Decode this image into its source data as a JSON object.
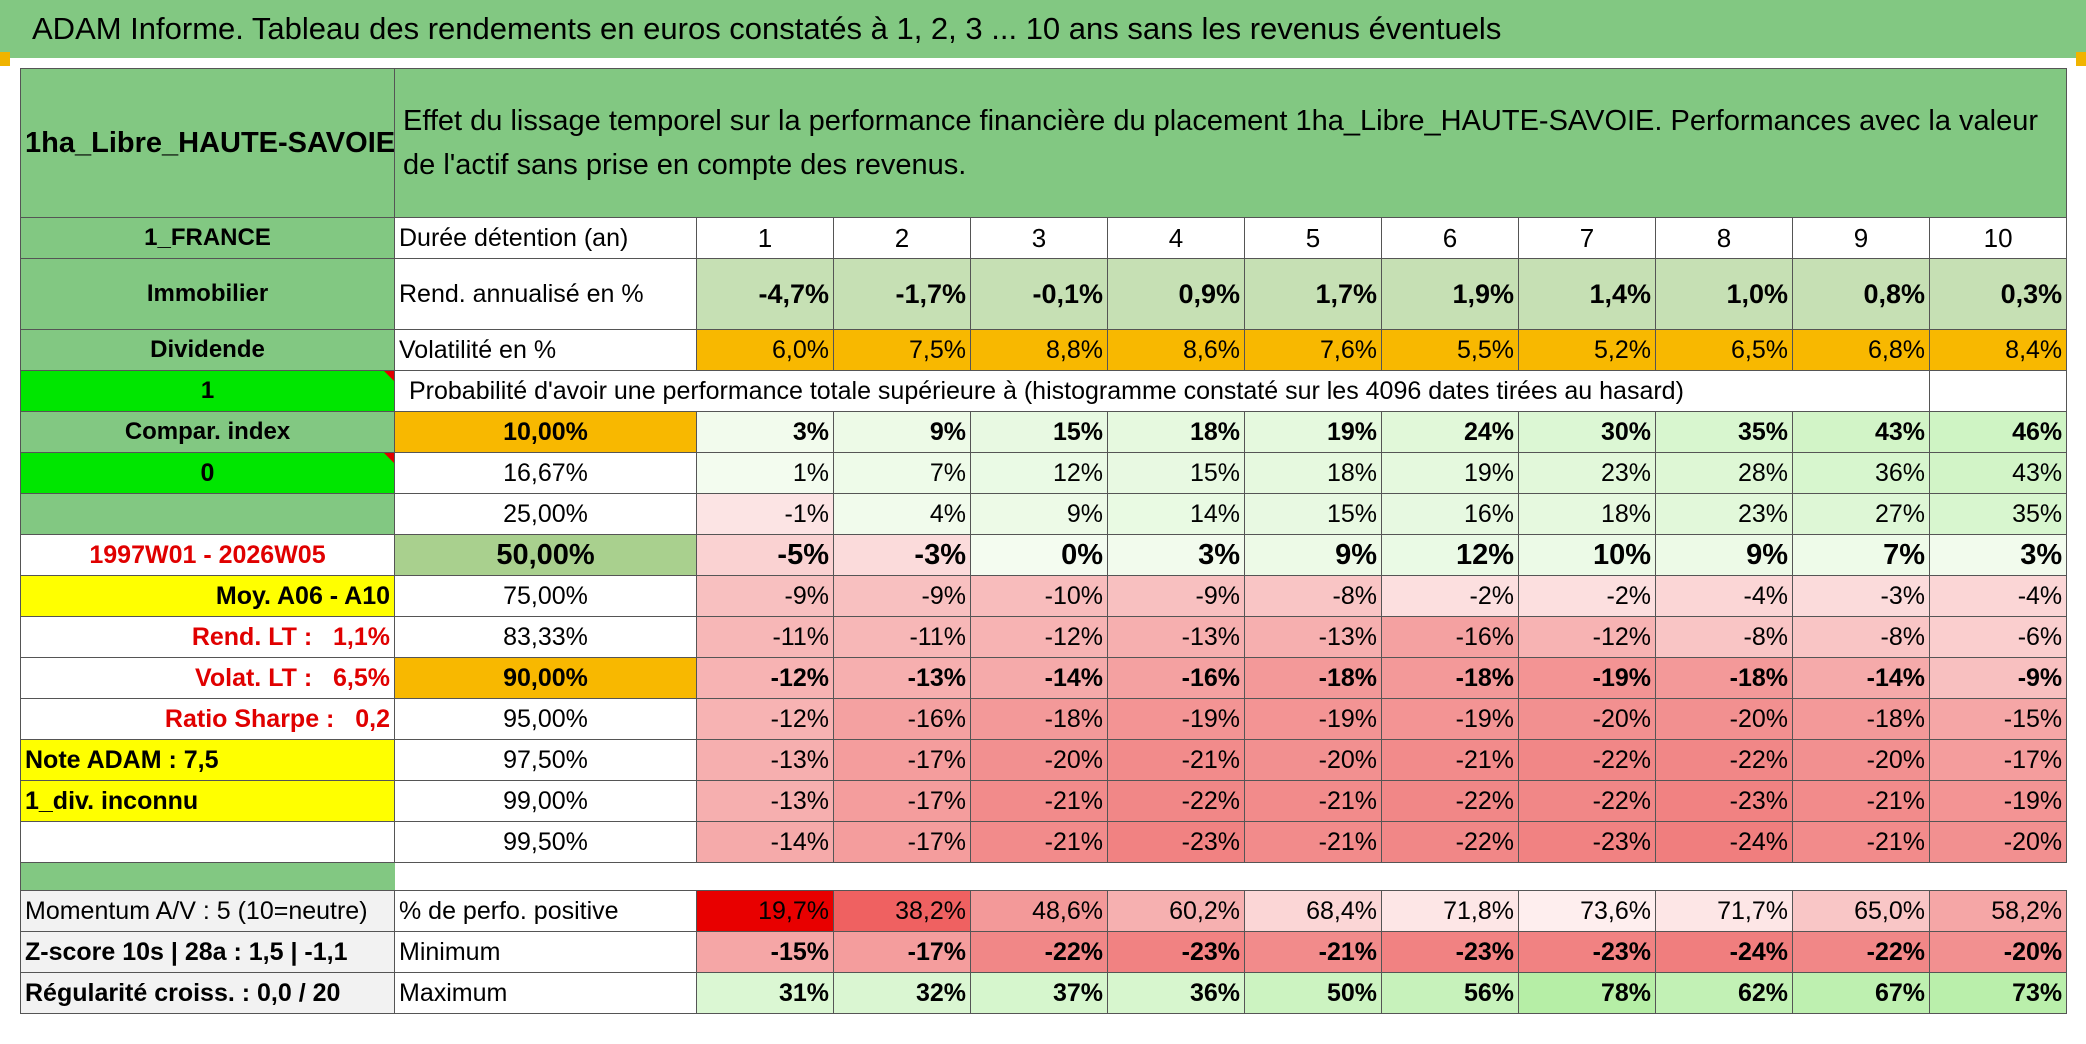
{
  "title": "ADAM Informe. Tableau des rendements en euros constatés à 1, 2, 3 ... 10 ans sans les revenus éventuels",
  "colors": {
    "green_header": "#82c882",
    "orange": "#f8b800",
    "yellow": "#ffff00",
    "bright_green": "#00e600",
    "red_text": "#e00000"
  },
  "asset_name": "1ha_Libre_HAUTE-SAVOIE",
  "description": "Effet du lissage temporel sur la performance financière du placement 1ha_Libre_HAUTE-SAVOIE. Performances avec la valeur de l'actif sans prise en compte des revenus.",
  "left": {
    "country": "1_FRANCE",
    "category": "Immobilier",
    "dividend_label": "Dividende",
    "dividend_value": "1",
    "compar_label": "Compar. index",
    "compar_value": "0",
    "period": "1997W01 - 2026W05",
    "moy": "Moy. A06 - A10",
    "rend_lt_label": "Rend. LT :",
    "rend_lt_value": "1,1%",
    "volat_lt_label": "Volat. LT :",
    "volat_lt_value": "6,5%",
    "sharpe_label": "Ratio Sharpe :",
    "sharpe_value": "0,2",
    "note": "Note ADAM : 7,5",
    "div": "1_div. inconnu",
    "momentum": "Momentum A/V : 5 (10=neutre)",
    "zscore": "Z-score 10s | 28a : 1,5 | -1,1",
    "regularite": "Régularité croiss. : 0,0 / 20"
  },
  "labels": {
    "duree": "Durée détention (an)",
    "rend": "Rend. annualisé en %",
    "vol": "Volatilité en %",
    "proba": "Probabilité d'avoir une performance totale supérieure à (histogramme constaté sur les 4096 dates tirées au hasard)",
    "positive": "% de perfo. positive",
    "minimum": "Minimum",
    "maximum": "Maximum"
  },
  "years": [
    "1",
    "2",
    "3",
    "4",
    "5",
    "6",
    "7",
    "8",
    "9",
    "10"
  ],
  "rend": [
    "-4,7%",
    "-1,7%",
    "-0,1%",
    "0,9%",
    "1,7%",
    "1,9%",
    "1,4%",
    "1,0%",
    "0,8%",
    "0,3%"
  ],
  "vol": [
    "6,0%",
    "7,5%",
    "8,8%",
    "8,6%",
    "7,6%",
    "5,5%",
    "5,2%",
    "6,5%",
    "6,8%",
    "8,4%"
  ],
  "rows": [
    {
      "bench": "10,00%",
      "values": [
        "3%",
        "9%",
        "15%",
        "18%",
        "19%",
        "24%",
        "30%",
        "35%",
        "43%",
        "46%"
      ]
    },
    {
      "bench": "16,67%",
      "values": [
        "1%",
        "7%",
        "12%",
        "15%",
        "18%",
        "19%",
        "23%",
        "28%",
        "36%",
        "43%"
      ]
    },
    {
      "bench": "25,00%",
      "values": [
        "-1%",
        "4%",
        "9%",
        "14%",
        "15%",
        "16%",
        "18%",
        "23%",
        "27%",
        "35%"
      ]
    },
    {
      "bench": "50,00%",
      "values": [
        "-5%",
        "-3%",
        "0%",
        "3%",
        "9%",
        "12%",
        "10%",
        "9%",
        "7%",
        "3%"
      ]
    },
    {
      "bench": "75,00%",
      "values": [
        "-9%",
        "-9%",
        "-10%",
        "-9%",
        "-8%",
        "-2%",
        "-2%",
        "-4%",
        "-3%",
        "-4%"
      ]
    },
    {
      "bench": "83,33%",
      "values": [
        "-11%",
        "-11%",
        "-12%",
        "-13%",
        "-13%",
        "-16%",
        "-12%",
        "-8%",
        "-8%",
        "-6%"
      ]
    },
    {
      "bench": "90,00%",
      "values": [
        "-12%",
        "-13%",
        "-14%",
        "-16%",
        "-18%",
        "-18%",
        "-19%",
        "-18%",
        "-14%",
        "-9%"
      ]
    },
    {
      "bench": "95,00%",
      "values": [
        "-12%",
        "-16%",
        "-18%",
        "-19%",
        "-19%",
        "-19%",
        "-20%",
        "-20%",
        "-18%",
        "-15%"
      ]
    },
    {
      "bench": "97,50%",
      "values": [
        "-13%",
        "-17%",
        "-20%",
        "-21%",
        "-20%",
        "-21%",
        "-22%",
        "-22%",
        "-20%",
        "-17%"
      ]
    },
    {
      "bench": "99,00%",
      "values": [
        "-13%",
        "-17%",
        "-21%",
        "-22%",
        "-21%",
        "-22%",
        "-22%",
        "-23%",
        "-21%",
        "-19%"
      ]
    },
    {
      "bench": "99,50%",
      "values": [
        "-14%",
        "-17%",
        "-21%",
        "-23%",
        "-21%",
        "-22%",
        "-23%",
        "-24%",
        "-21%",
        "-20%"
      ]
    }
  ],
  "positive": [
    "19,7%",
    "38,2%",
    "48,6%",
    "60,2%",
    "68,4%",
    "71,8%",
    "73,6%",
    "71,7%",
    "65,0%",
    "58,2%"
  ],
  "minimum": [
    "-15%",
    "-17%",
    "-22%",
    "-23%",
    "-21%",
    "-23%",
    "-23%",
    "-24%",
    "-22%",
    "-20%"
  ],
  "maximum": [
    "31%",
    "32%",
    "37%",
    "36%",
    "50%",
    "56%",
    "78%",
    "62%",
    "67%",
    "73%"
  ]
}
